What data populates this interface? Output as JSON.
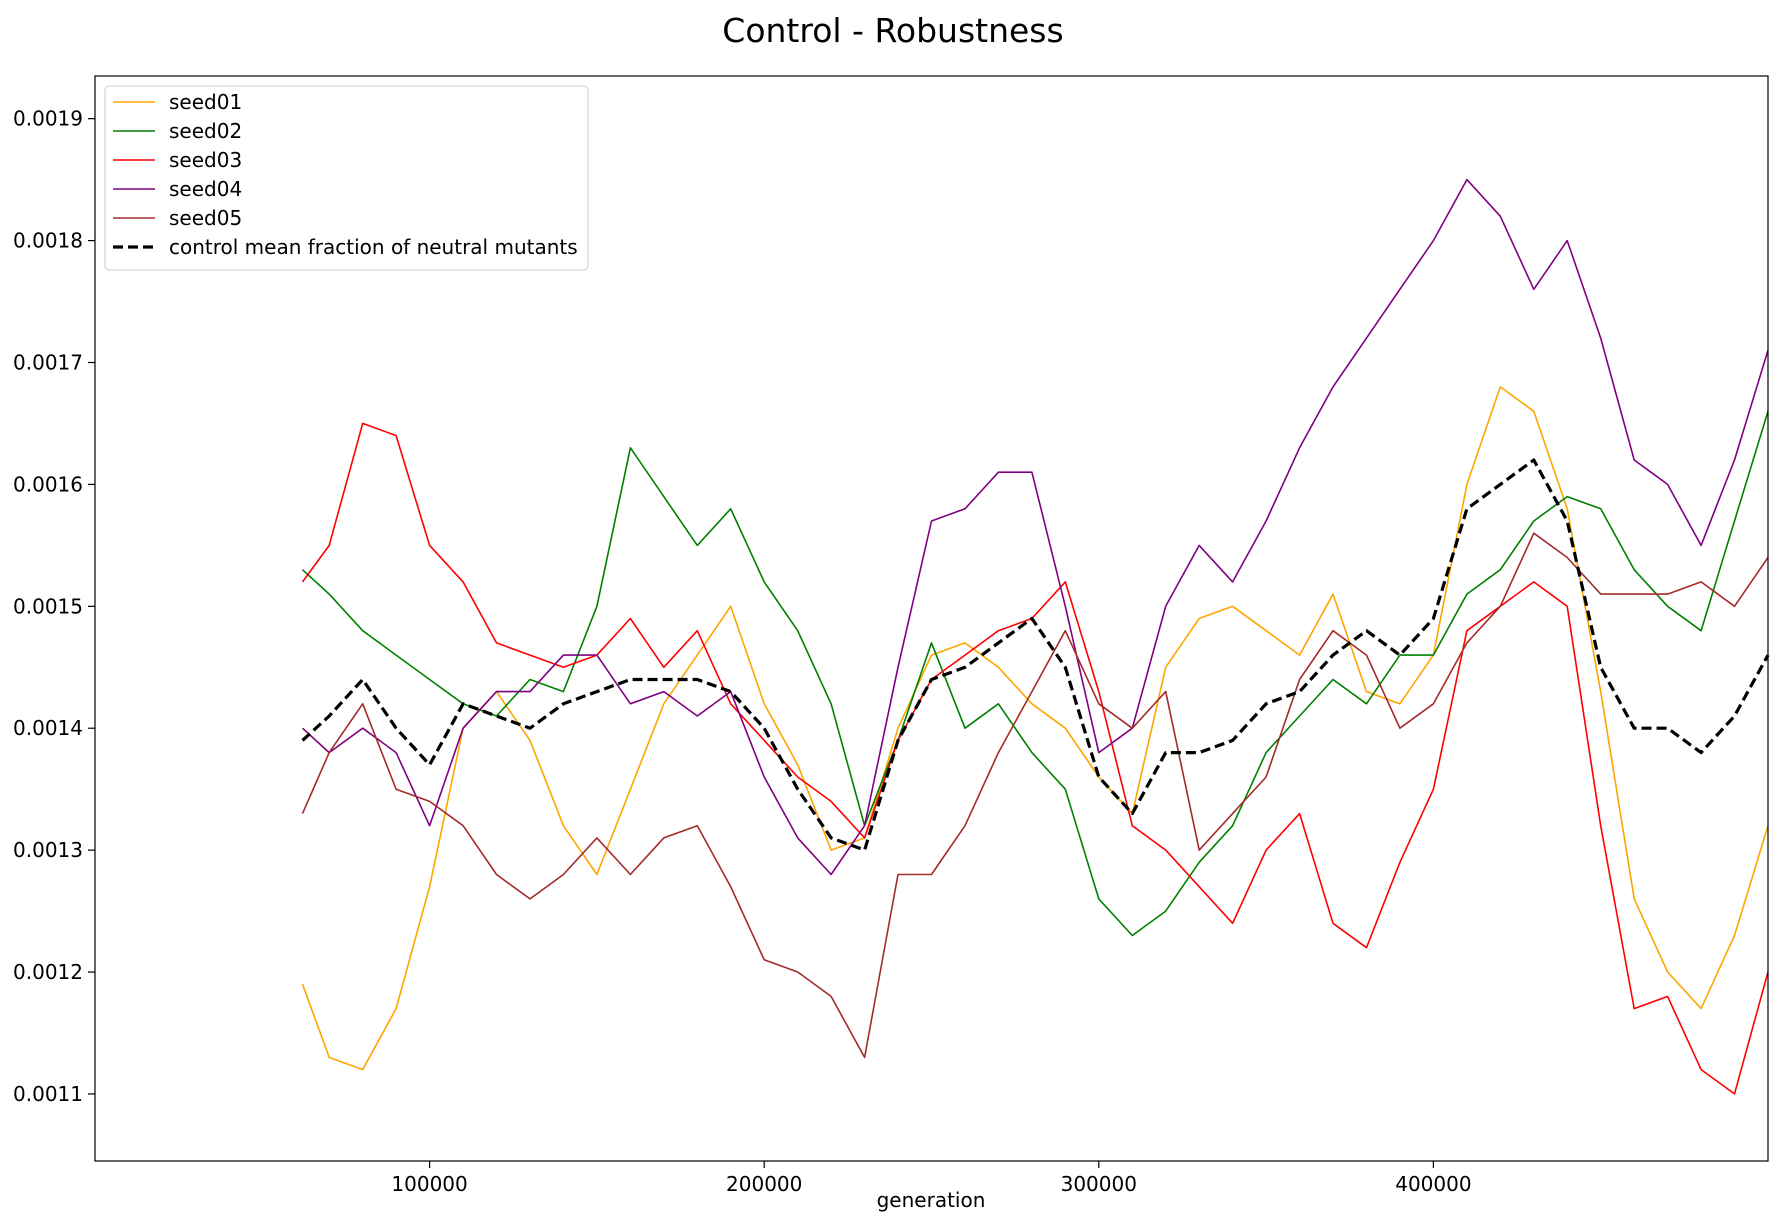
{
  "chart_data": {
    "type": "line",
    "title": "Control - Robustness",
    "xlabel": "generation",
    "ylabel": "",
    "xlim": [
      0,
      500000
    ],
    "ylim": [
      0.001045,
      0.001935
    ],
    "x_ticks": [
      100000,
      200000,
      300000,
      400000
    ],
    "x_tick_labels": [
      "100000",
      "200000",
      "300000",
      "400000"
    ],
    "y_ticks": [
      0.0011,
      0.0012,
      0.0013,
      0.0014,
      0.0015,
      0.0016,
      0.0017,
      0.0018,
      0.0019
    ],
    "y_tick_labels": [
      "0.0011",
      "0.0012",
      "0.0013",
      "0.0014",
      "0.0015",
      "0.0016",
      "0.0017",
      "0.0018",
      "0.0019"
    ],
    "grid": false,
    "legend_position": "top-left",
    "x": [
      62000,
      70000,
      80000,
      90000,
      100000,
      110000,
      120000,
      130000,
      140000,
      150000,
      160000,
      170000,
      180000,
      190000,
      200000,
      210000,
      220000,
      230000,
      240000,
      250000,
      260000,
      270000,
      280000,
      290000,
      300000,
      310000,
      320000,
      330000,
      340000,
      350000,
      360000,
      370000,
      380000,
      390000,
      400000,
      410000,
      420000,
      430000,
      440000,
      450000,
      460000,
      470000,
      480000,
      490000,
      500000
    ],
    "series": [
      {
        "name": "seed01",
        "color": "#ffa500",
        "dashed": false,
        "values": [
          0.00119,
          0.00113,
          0.00112,
          0.00117,
          0.00127,
          0.0014,
          0.00143,
          0.00139,
          0.00132,
          0.00128,
          0.00135,
          0.00142,
          0.00146,
          0.0015,
          0.00142,
          0.00137,
          0.0013,
          0.00131,
          0.0014,
          0.00146,
          0.00147,
          0.00145,
          0.00142,
          0.0014,
          0.00136,
          0.00133,
          0.00145,
          0.00149,
          0.0015,
          0.00148,
          0.00146,
          0.00151,
          0.00143,
          0.00142,
          0.00146,
          0.0016,
          0.00168,
          0.00166,
          0.00158,
          0.00143,
          0.00126,
          0.0012,
          0.00117,
          0.00123,
          0.00132
        ]
      },
      {
        "name": "seed02",
        "color": "#008000",
        "dashed": false,
        "values": [
          0.00153,
          0.00151,
          0.00148,
          0.00146,
          0.00144,
          0.00142,
          0.00141,
          0.00144,
          0.00143,
          0.0015,
          0.00163,
          0.00159,
          0.00155,
          0.00158,
          0.00152,
          0.00148,
          0.00142,
          0.00132,
          0.00139,
          0.00147,
          0.0014,
          0.00142,
          0.00138,
          0.00135,
          0.00126,
          0.00123,
          0.00125,
          0.00129,
          0.00132,
          0.00138,
          0.00141,
          0.00144,
          0.00142,
          0.00146,
          0.00146,
          0.00151,
          0.00153,
          0.00157,
          0.00159,
          0.00158,
          0.00153,
          0.0015,
          0.00148,
          0.00157,
          0.00166
        ]
      },
      {
        "name": "seed03",
        "color": "#ff0000",
        "dashed": false,
        "values": [
          0.00152,
          0.00155,
          0.00165,
          0.00164,
          0.00155,
          0.00152,
          0.00147,
          0.00146,
          0.00145,
          0.00146,
          0.00149,
          0.00145,
          0.00148,
          0.00142,
          0.00139,
          0.00136,
          0.00134,
          0.00131,
          0.00139,
          0.00144,
          0.00146,
          0.00148,
          0.00149,
          0.00152,
          0.00143,
          0.00132,
          0.0013,
          0.00127,
          0.00124,
          0.0013,
          0.00133,
          0.00124,
          0.00122,
          0.00129,
          0.00135,
          0.00148,
          0.0015,
          0.00152,
          0.0015,
          0.00132,
          0.00117,
          0.00118,
          0.00112,
          0.0011,
          0.0012
        ]
      },
      {
        "name": "seed04",
        "color": "#800080",
        "dashed": false,
        "values": [
          0.0014,
          0.00138,
          0.0014,
          0.00138,
          0.00132,
          0.0014,
          0.00143,
          0.00143,
          0.00146,
          0.00146,
          0.00142,
          0.00143,
          0.00141,
          0.00143,
          0.00136,
          0.00131,
          0.00128,
          0.00132,
          0.00145,
          0.00157,
          0.00158,
          0.00161,
          0.00161,
          0.0015,
          0.00138,
          0.0014,
          0.0015,
          0.00155,
          0.00152,
          0.00157,
          0.00163,
          0.00168,
          0.00172,
          0.00176,
          0.0018,
          0.00185,
          0.00182,
          0.00176,
          0.0018,
          0.00172,
          0.00162,
          0.0016,
          0.00155,
          0.00162,
          0.00171
        ]
      },
      {
        "name": "seed05",
        "color": "#a52a2a",
        "dashed": false,
        "values": [
          0.00133,
          0.00138,
          0.00142,
          0.00135,
          0.00134,
          0.00132,
          0.00128,
          0.00126,
          0.00128,
          0.00131,
          0.00128,
          0.00131,
          0.00132,
          0.00127,
          0.00121,
          0.0012,
          0.00118,
          0.00113,
          0.00128,
          0.00128,
          0.00132,
          0.00138,
          0.00143,
          0.00148,
          0.00142,
          0.0014,
          0.00143,
          0.0013,
          0.00133,
          0.00136,
          0.00144,
          0.00148,
          0.00146,
          0.0014,
          0.00142,
          0.00147,
          0.0015,
          0.00156,
          0.00154,
          0.00151,
          0.00151,
          0.00151,
          0.00152,
          0.0015,
          0.00154
        ]
      },
      {
        "name": "control mean fraction of neutral mutants",
        "color": "#000000",
        "dashed": true,
        "values": [
          0.00139,
          0.00141,
          0.00144,
          0.0014,
          0.00137,
          0.00142,
          0.00141,
          0.0014,
          0.00142,
          0.00143,
          0.00144,
          0.00144,
          0.00144,
          0.00143,
          0.0014,
          0.00135,
          0.00131,
          0.0013,
          0.00139,
          0.00144,
          0.00145,
          0.00147,
          0.00149,
          0.00145,
          0.00136,
          0.00133,
          0.00138,
          0.00138,
          0.00139,
          0.00142,
          0.00143,
          0.00146,
          0.00148,
          0.00146,
          0.00149,
          0.00158,
          0.0016,
          0.00162,
          0.00157,
          0.00145,
          0.0014,
          0.0014,
          0.00138,
          0.00141,
          0.00146
        ]
      }
    ]
  }
}
